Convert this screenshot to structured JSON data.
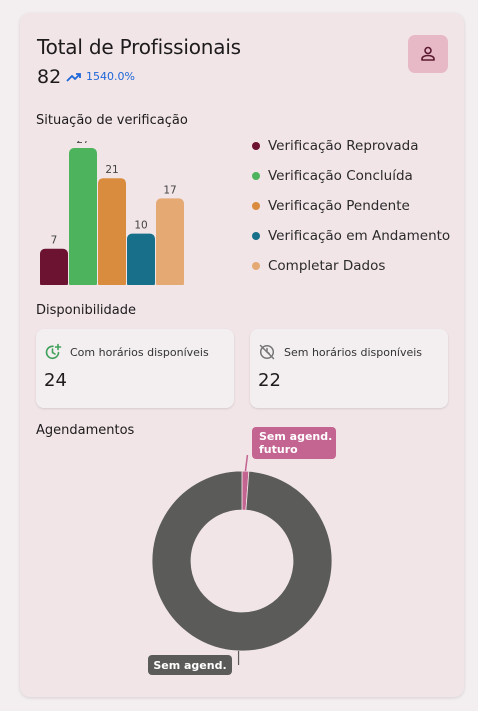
{
  "header": {
    "title": "Total de Profissionais",
    "total": "82",
    "growth": "1540.0%",
    "avatar_icon": "user-icon"
  },
  "verification": {
    "title": "Situação de verificação",
    "legend": [
      {
        "label": "Verificação Reprovada",
        "color": "#6b1330"
      },
      {
        "label": "Verificação Concluída",
        "color": "#4db35c"
      },
      {
        "label": "Verificação Pendente",
        "color": "#d98b3e"
      },
      {
        "label": "Verificação em Andamento",
        "color": "#186f89"
      },
      {
        "label": "Completar Dados",
        "color": "#e5aa74"
      }
    ]
  },
  "availability": {
    "title": "Disponibilidade",
    "with_label": "Com horários disponíveis",
    "with_value": "24",
    "without_label": "Sem horários disponíveis",
    "without_value": "22"
  },
  "appointments": {
    "title": "Agendamentos"
  },
  "chart_data": [
    {
      "type": "bar",
      "categories": [
        "Verificação Reprovada",
        "Verificação Concluída",
        "Verificação Pendente",
        "Verificação em Andamento",
        "Completar Dados"
      ],
      "values": [
        7,
        27,
        21,
        10,
        17
      ],
      "colors": [
        "#6b1330",
        "#4db35c",
        "#d98b3e",
        "#186f89",
        "#e5aa74"
      ],
      "ylim": [
        0,
        27
      ]
    },
    {
      "type": "pie",
      "donut": true,
      "labels": [
        "Sem agend. futuro",
        "Sem agend."
      ],
      "values": [
        1,
        81
      ],
      "colors": [
        "#c46491",
        "#5b5c5a"
      ]
    }
  ]
}
